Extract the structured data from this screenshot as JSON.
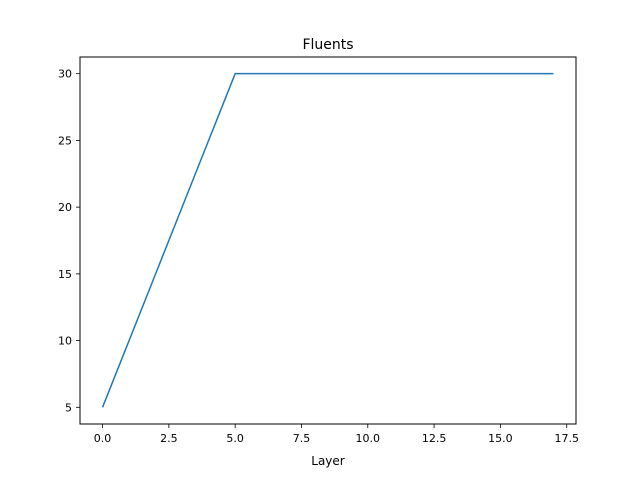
{
  "chart_data": {
    "type": "line",
    "title": "Fluents",
    "xlabel": "Layer",
    "ylabel": "",
    "xlim": [
      -0.85,
      17.85
    ],
    "ylim": [
      3.75,
      31.25
    ],
    "xticks": [
      0.0,
      2.5,
      5.0,
      7.5,
      10.0,
      12.5,
      15.0,
      17.5
    ],
    "xtick_labels": [
      "0.0",
      "2.5",
      "5.0",
      "7.5",
      "10.0",
      "12.5",
      "15.0",
      "17.5"
    ],
    "yticks": [
      5,
      10,
      15,
      20,
      25,
      30
    ],
    "ytick_labels": [
      "5",
      "10",
      "15",
      "20",
      "25",
      "30"
    ],
    "grid": false,
    "legend": false,
    "series": [
      {
        "color": "#1f77b4",
        "x": [
          0,
          1,
          2,
          3,
          4,
          5,
          6,
          7,
          8,
          9,
          10,
          11,
          12,
          13,
          14,
          15,
          16,
          17
        ],
        "y": [
          5,
          10,
          15,
          20,
          25,
          30,
          30,
          30,
          30,
          30,
          30,
          30,
          30,
          30,
          30,
          30,
          30,
          30
        ]
      }
    ]
  }
}
